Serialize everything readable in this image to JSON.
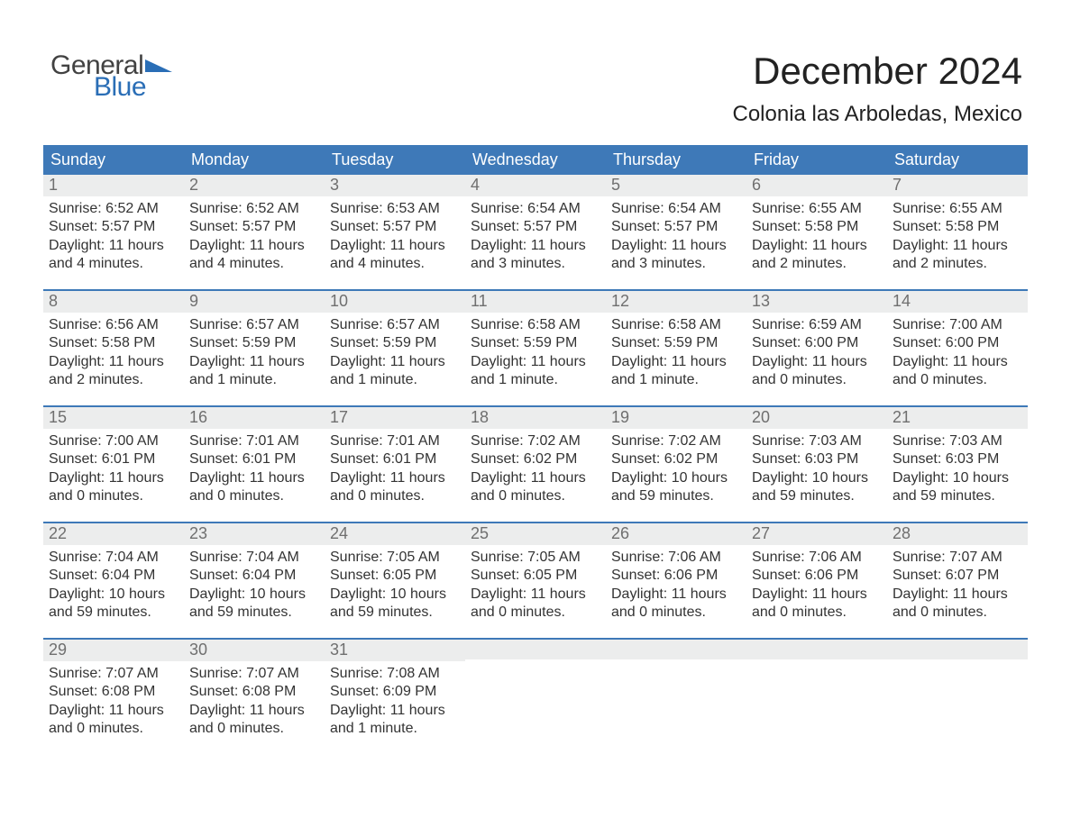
{
  "logo": {
    "word1": "General",
    "word2": "Blue",
    "tri_color": "#2a6eb6"
  },
  "title": "December 2024",
  "location": "Colonia las Arboledas, Mexico",
  "header_bg": "#3e79b8",
  "daynum_bg": "#eceded",
  "text_color": "#333333",
  "day_headers": [
    "Sunday",
    "Monday",
    "Tuesday",
    "Wednesday",
    "Thursday",
    "Friday",
    "Saturday"
  ],
  "weeks": [
    [
      {
        "n": "1",
        "sunrise": "Sunrise: 6:52 AM",
        "sunset": "Sunset: 5:57 PM",
        "d1": "Daylight: 11 hours",
        "d2": "and 4 minutes."
      },
      {
        "n": "2",
        "sunrise": "Sunrise: 6:52 AM",
        "sunset": "Sunset: 5:57 PM",
        "d1": "Daylight: 11 hours",
        "d2": "and 4 minutes."
      },
      {
        "n": "3",
        "sunrise": "Sunrise: 6:53 AM",
        "sunset": "Sunset: 5:57 PM",
        "d1": "Daylight: 11 hours",
        "d2": "and 4 minutes."
      },
      {
        "n": "4",
        "sunrise": "Sunrise: 6:54 AM",
        "sunset": "Sunset: 5:57 PM",
        "d1": "Daylight: 11 hours",
        "d2": "and 3 minutes."
      },
      {
        "n": "5",
        "sunrise": "Sunrise: 6:54 AM",
        "sunset": "Sunset: 5:57 PM",
        "d1": "Daylight: 11 hours",
        "d2": "and 3 minutes."
      },
      {
        "n": "6",
        "sunrise": "Sunrise: 6:55 AM",
        "sunset": "Sunset: 5:58 PM",
        "d1": "Daylight: 11 hours",
        "d2": "and 2 minutes."
      },
      {
        "n": "7",
        "sunrise": "Sunrise: 6:55 AM",
        "sunset": "Sunset: 5:58 PM",
        "d1": "Daylight: 11 hours",
        "d2": "and 2 minutes."
      }
    ],
    [
      {
        "n": "8",
        "sunrise": "Sunrise: 6:56 AM",
        "sunset": "Sunset: 5:58 PM",
        "d1": "Daylight: 11 hours",
        "d2": "and 2 minutes."
      },
      {
        "n": "9",
        "sunrise": "Sunrise: 6:57 AM",
        "sunset": "Sunset: 5:59 PM",
        "d1": "Daylight: 11 hours",
        "d2": "and 1 minute."
      },
      {
        "n": "10",
        "sunrise": "Sunrise: 6:57 AM",
        "sunset": "Sunset: 5:59 PM",
        "d1": "Daylight: 11 hours",
        "d2": "and 1 minute."
      },
      {
        "n": "11",
        "sunrise": "Sunrise: 6:58 AM",
        "sunset": "Sunset: 5:59 PM",
        "d1": "Daylight: 11 hours",
        "d2": "and 1 minute."
      },
      {
        "n": "12",
        "sunrise": "Sunrise: 6:58 AM",
        "sunset": "Sunset: 5:59 PM",
        "d1": "Daylight: 11 hours",
        "d2": "and 1 minute."
      },
      {
        "n": "13",
        "sunrise": "Sunrise: 6:59 AM",
        "sunset": "Sunset: 6:00 PM",
        "d1": "Daylight: 11 hours",
        "d2": "and 0 minutes."
      },
      {
        "n": "14",
        "sunrise": "Sunrise: 7:00 AM",
        "sunset": "Sunset: 6:00 PM",
        "d1": "Daylight: 11 hours",
        "d2": "and 0 minutes."
      }
    ],
    [
      {
        "n": "15",
        "sunrise": "Sunrise: 7:00 AM",
        "sunset": "Sunset: 6:01 PM",
        "d1": "Daylight: 11 hours",
        "d2": "and 0 minutes."
      },
      {
        "n": "16",
        "sunrise": "Sunrise: 7:01 AM",
        "sunset": "Sunset: 6:01 PM",
        "d1": "Daylight: 11 hours",
        "d2": "and 0 minutes."
      },
      {
        "n": "17",
        "sunrise": "Sunrise: 7:01 AM",
        "sunset": "Sunset: 6:01 PM",
        "d1": "Daylight: 11 hours",
        "d2": "and 0 minutes."
      },
      {
        "n": "18",
        "sunrise": "Sunrise: 7:02 AM",
        "sunset": "Sunset: 6:02 PM",
        "d1": "Daylight: 11 hours",
        "d2": "and 0 minutes."
      },
      {
        "n": "19",
        "sunrise": "Sunrise: 7:02 AM",
        "sunset": "Sunset: 6:02 PM",
        "d1": "Daylight: 10 hours",
        "d2": "and 59 minutes."
      },
      {
        "n": "20",
        "sunrise": "Sunrise: 7:03 AM",
        "sunset": "Sunset: 6:03 PM",
        "d1": "Daylight: 10 hours",
        "d2": "and 59 minutes."
      },
      {
        "n": "21",
        "sunrise": "Sunrise: 7:03 AM",
        "sunset": "Sunset: 6:03 PM",
        "d1": "Daylight: 10 hours",
        "d2": "and 59 minutes."
      }
    ],
    [
      {
        "n": "22",
        "sunrise": "Sunrise: 7:04 AM",
        "sunset": "Sunset: 6:04 PM",
        "d1": "Daylight: 10 hours",
        "d2": "and 59 minutes."
      },
      {
        "n": "23",
        "sunrise": "Sunrise: 7:04 AM",
        "sunset": "Sunset: 6:04 PM",
        "d1": "Daylight: 10 hours",
        "d2": "and 59 minutes."
      },
      {
        "n": "24",
        "sunrise": "Sunrise: 7:05 AM",
        "sunset": "Sunset: 6:05 PM",
        "d1": "Daylight: 10 hours",
        "d2": "and 59 minutes."
      },
      {
        "n": "25",
        "sunrise": "Sunrise: 7:05 AM",
        "sunset": "Sunset: 6:05 PM",
        "d1": "Daylight: 11 hours",
        "d2": "and 0 minutes."
      },
      {
        "n": "26",
        "sunrise": "Sunrise: 7:06 AM",
        "sunset": "Sunset: 6:06 PM",
        "d1": "Daylight: 11 hours",
        "d2": "and 0 minutes."
      },
      {
        "n": "27",
        "sunrise": "Sunrise: 7:06 AM",
        "sunset": "Sunset: 6:06 PM",
        "d1": "Daylight: 11 hours",
        "d2": "and 0 minutes."
      },
      {
        "n": "28",
        "sunrise": "Sunrise: 7:07 AM",
        "sunset": "Sunset: 6:07 PM",
        "d1": "Daylight: 11 hours",
        "d2": "and 0 minutes."
      }
    ],
    [
      {
        "n": "29",
        "sunrise": "Sunrise: 7:07 AM",
        "sunset": "Sunset: 6:08 PM",
        "d1": "Daylight: 11 hours",
        "d2": "and 0 minutes."
      },
      {
        "n": "30",
        "sunrise": "Sunrise: 7:07 AM",
        "sunset": "Sunset: 6:08 PM",
        "d1": "Daylight: 11 hours",
        "d2": "and 0 minutes."
      },
      {
        "n": "31",
        "sunrise": "Sunrise: 7:08 AM",
        "sunset": "Sunset: 6:09 PM",
        "d1": "Daylight: 11 hours",
        "d2": "and 1 minute."
      },
      {
        "empty": true
      },
      {
        "empty": true
      },
      {
        "empty": true
      },
      {
        "empty": true
      }
    ]
  ]
}
